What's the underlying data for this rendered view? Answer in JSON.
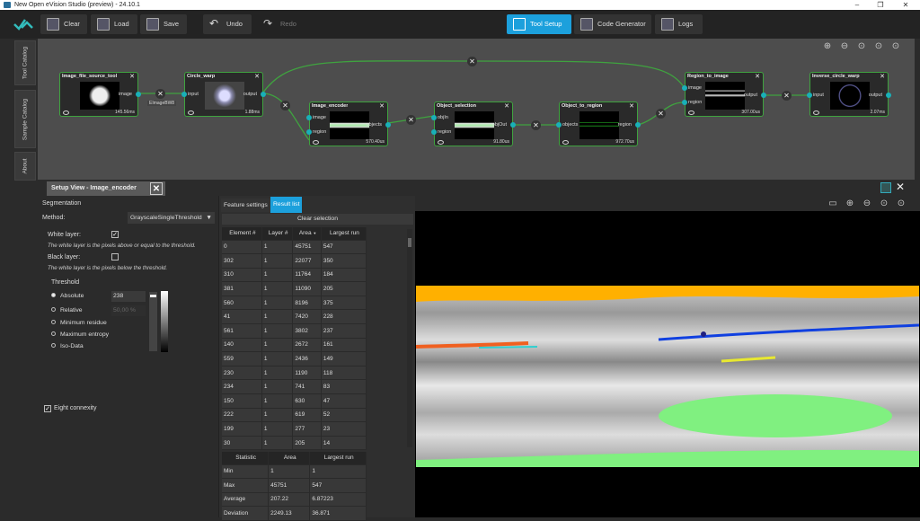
{
  "window": {
    "title": "New Open eVision Studio (preview) - 24.10.1",
    "controls": [
      "–",
      "❐",
      "✕"
    ]
  },
  "toolbar": {
    "clear": "Clear",
    "load": "Load",
    "save": "Save",
    "undo": "Undo",
    "redo": "Redo",
    "tool_setup": "Tool Setup",
    "code_generator": "Code Generator",
    "logs": "Logs"
  },
  "side_tabs": [
    "Tool Catalog",
    "Sample Catalog",
    "About"
  ],
  "graph": {
    "nodes": [
      {
        "title": "Image_file_source_tool",
        "inputs": [],
        "output": "image",
        "time": "145.56ms"
      },
      {
        "title": "Circle_warp",
        "inputs": [
          "input"
        ],
        "output": "output",
        "time": "1.88ms"
      },
      {
        "title": "Image_encoder",
        "inputs": [
          "image",
          "region"
        ],
        "output": "objects",
        "time": "570.40us"
      },
      {
        "title": "Object_selection",
        "inputs": [
          "objIn",
          "region"
        ],
        "output": "objOut",
        "time": "91.80us"
      },
      {
        "title": "Object_to_region",
        "inputs": [
          "objects"
        ],
        "output": "region",
        "time": "972.70us"
      },
      {
        "title": "Region_to_image",
        "inputs": [
          "image",
          "region"
        ],
        "output": "output",
        "time": "307.00us"
      },
      {
        "title": "Inverse_circle_warp",
        "inputs": [
          "input"
        ],
        "output": "output",
        "time": "2.07ms"
      }
    ],
    "edge_label": "EImageBW8"
  },
  "setup_view": {
    "tab_title": "Setup View - Image_encoder",
    "segmentation": "Segmentation",
    "method_label": "Method:",
    "method_value": "GrayscaleSingleThreshold",
    "white_layer_label": "White layer:",
    "white_layer_checked": true,
    "white_layer_desc": "The white layer is the pixels above or equal to the threshold.",
    "black_layer_label": "Black layer:",
    "black_layer_checked": false,
    "black_layer_desc": "The white layer is the pixels below the threshold.",
    "threshold_label": "Threshold",
    "threshold_modes": [
      "Absolute",
      "Relative",
      "Minimum residue",
      "Maximum entropy",
      "Iso-Data"
    ],
    "selected_mode": "Absolute",
    "absolute_value": "238",
    "relative_value": "50,00 %",
    "eight_connexity_label": "Eight connexity",
    "eight_connexity_checked": true
  },
  "results": {
    "tabs": [
      "Feature settings",
      "Result list"
    ],
    "active_tab": "Result list",
    "clear_selection": "Clear selection",
    "columns": [
      "Element #",
      "Layer #",
      "Area",
      "Largest run"
    ],
    "sort_indicator": "▼",
    "rows": [
      [
        "0",
        "1",
        "45751",
        "547"
      ],
      [
        "302",
        "1",
        "22077",
        "350"
      ],
      [
        "310",
        "1",
        "11764",
        "184"
      ],
      [
        "381",
        "1",
        "11090",
        "205"
      ],
      [
        "560",
        "1",
        "8196",
        "375"
      ],
      [
        "41",
        "1",
        "7420",
        "228"
      ],
      [
        "561",
        "1",
        "3802",
        "237"
      ],
      [
        "140",
        "1",
        "2672",
        "161"
      ],
      [
        "559",
        "1",
        "2436",
        "149"
      ],
      [
        "230",
        "1",
        "1190",
        "118"
      ],
      [
        "234",
        "1",
        "741",
        "83"
      ],
      [
        "150",
        "1",
        "630",
        "47"
      ],
      [
        "222",
        "1",
        "619",
        "52"
      ],
      [
        "199",
        "1",
        "277",
        "23"
      ],
      [
        "30",
        "1",
        "205",
        "14"
      ]
    ],
    "stat_columns": [
      "Statistic",
      "Area",
      "Largest run"
    ],
    "stats": [
      [
        "Min",
        "1",
        "1"
      ],
      [
        "Max",
        "45751",
        "547"
      ],
      [
        "Average",
        "207.22",
        "6.87223"
      ],
      [
        "Deviation",
        "2249.13",
        "36.871"
      ]
    ]
  },
  "colors": {
    "accent": "#1ca0dc",
    "node_border": "#3fa33f",
    "port": "#19b0b8",
    "blob_orange": "#ffb000",
    "blob_green": "#80f080",
    "blob_blue": "#1040e0"
  }
}
